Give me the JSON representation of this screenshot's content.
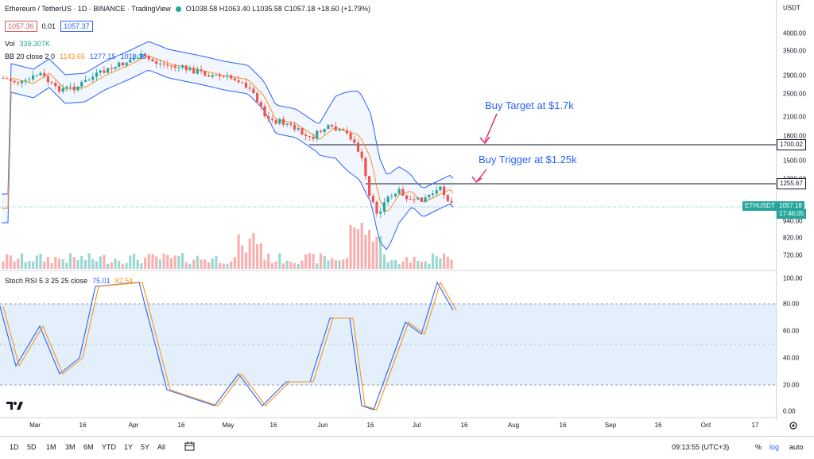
{
  "header": {
    "symbol_title": "Ethereum / TetherUS · 1D · BINANCE · TradingView",
    "ohlc": "O1038.58 H1063.40 L1035.58 C1057.18 +18.60 (+1.79%)",
    "sell_price": "1057.36",
    "spread": "0.01",
    "buy_price": "1057.37",
    "vol_label": "Vol",
    "vol_value": "339.307K",
    "bb_label": "BB 20 close 2 0",
    "bb_basis": "1143.65",
    "bb_upper": "1277.15",
    "bb_lower": "1010.16",
    "stoch_label": "Stoch RSI 5 3 25 25 close",
    "stoch_k": "75.01",
    "stoch_d": "82.54"
  },
  "price_axis": {
    "currency": "USDT",
    "labels": [
      "4000.00",
      "3500.00",
      "2900.00",
      "2500.00",
      "2100.00",
      "1800.00",
      "1500.00",
      "1300.00",
      "940.00",
      "820.00",
      "720.00"
    ],
    "tag_1700": "1700.02",
    "tag_1255": "1255.67",
    "tag_symbol": "ETHUSDT",
    "tag_last": "1057.18",
    "tag_countdown": "17:46:05"
  },
  "stoch_axis": {
    "labels": [
      "100.00",
      "80.00",
      "60.00",
      "40.00",
      "20.00",
      "0.00"
    ]
  },
  "time_axis": {
    "labels": [
      "Mar",
      "16",
      "Apr",
      "16",
      "May",
      "16",
      "Jun",
      "16",
      "Jul",
      "16",
      "Aug",
      "16",
      "Sep",
      "16",
      "Oct",
      "17"
    ]
  },
  "annotations": {
    "buy_target": "Buy Target at $1.7k",
    "buy_trigger": "Buy Trigger at $1.25k"
  },
  "bottom_bar": {
    "timeframes": [
      "1D",
      "5D",
      "1M",
      "3M",
      "6M",
      "YTD",
      "1Y",
      "5Y",
      "All"
    ],
    "clock": "09:13:55 (UTC+3)",
    "pct": "%",
    "log": "log",
    "auto": "auto"
  },
  "colors": {
    "up": "#26a69a",
    "down": "#ef5350",
    "bb": "#2962ff",
    "annotation": "#2962ff",
    "arrow": "#e91e63"
  },
  "icons": {
    "logo": "tradingview-logo-icon",
    "compare": "calendar-range-icon",
    "settings": "gear-icon"
  }
}
